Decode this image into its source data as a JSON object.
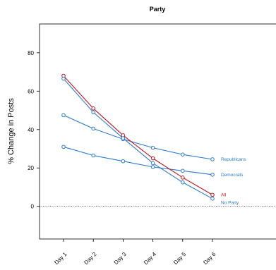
{
  "chart_data": {
    "type": "line",
    "title": "Party",
    "ylabel": "% Change in Posts",
    "xlabel": "",
    "categories": [
      "Day 1",
      "Day 2",
      "Day 3",
      "Day 4",
      "Day 5",
      "Day 6"
    ],
    "ylim": [
      -17,
      95
    ],
    "yticks": [
      0,
      20,
      40,
      60,
      80
    ],
    "reference_line": 0,
    "series": [
      {
        "name": "Republicans",
        "color": "#2b7bd0",
        "values": [
          47.5,
          40.5,
          35.0,
          30.5,
          27.0,
          24.5
        ]
      },
      {
        "name": "Democrats",
        "color": "#2b7bd0",
        "values": [
          31.0,
          26.5,
          23.5,
          20.5,
          18.5,
          16.5
        ]
      },
      {
        "name": "All",
        "color": "#c0141c",
        "values": [
          68.0,
          51.0,
          37.0,
          25.0,
          15.0,
          6.0
        ]
      },
      {
        "name": "No Party",
        "color": "#2b7bd0",
        "values": [
          66.5,
          49.0,
          35.5,
          22.5,
          12.5,
          4.0
        ]
      }
    ]
  }
}
